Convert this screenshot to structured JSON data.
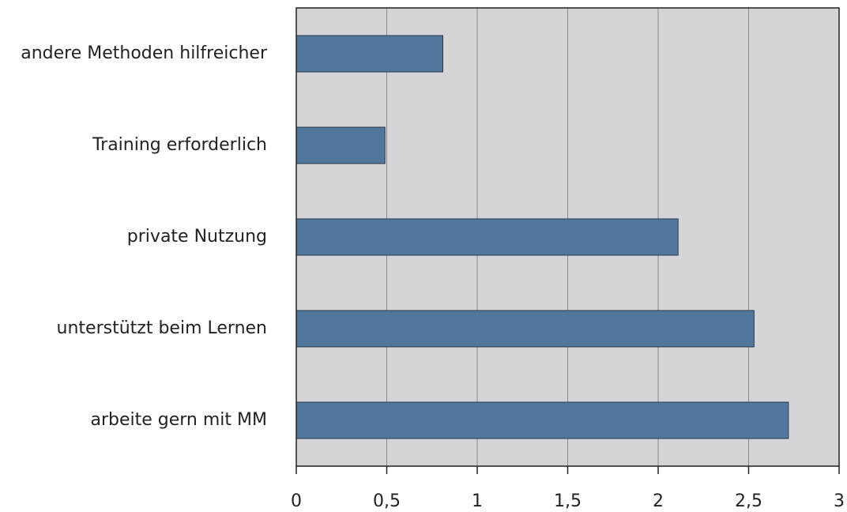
{
  "chart_data": {
    "type": "bar",
    "orientation": "horizontal",
    "categories": [
      "andere Methoden hilfreicher",
      "Training erforderlich",
      "private Nutzung",
      "unterstützt beim Lernen",
      "arbeite gern mit MM"
    ],
    "values": [
      0.81,
      0.49,
      2.11,
      2.53,
      2.72
    ],
    "color": "#52779d",
    "xlim": [
      0,
      3
    ],
    "xticks": [
      0,
      {
        "value": 0.5,
        "label": "0,5"
      },
      1,
      {
        "value": 1.5,
        "label": "1,5"
      },
      2,
      {
        "value": 2.5,
        "label": "2,5"
      },
      3
    ],
    "grid": true
  }
}
